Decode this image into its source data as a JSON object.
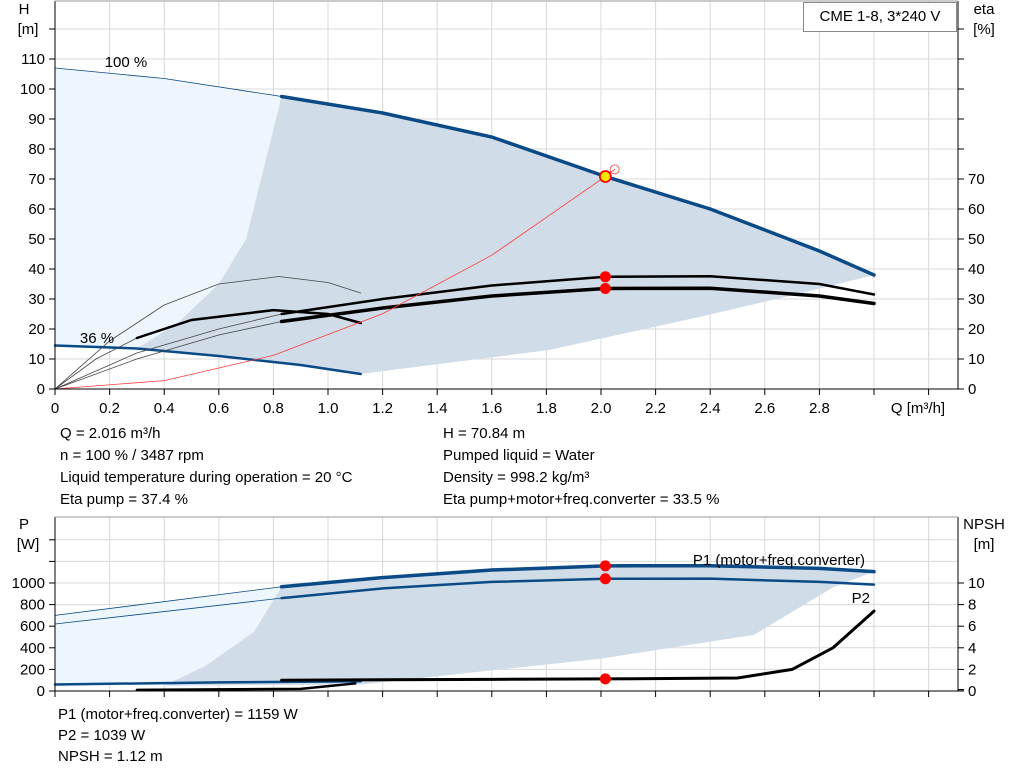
{
  "legend_box": "CME 1-8, 3*240 V",
  "colors": {
    "curve_blue": "#0a4a86",
    "light_area": "#edf5fd",
    "dark_area": "#d0dce8",
    "duty_point": "#ff0000",
    "system_curve": "#ff3b3b",
    "grid": "#d8d8d8"
  },
  "chart_data": [
    {
      "type": "line",
      "xlabel": "Q [m³/h]",
      "ylabel": "H\n[m]",
      "ylabel_right": "eta\n[%]",
      "xlim": [
        0,
        3.3
      ],
      "ylim": [
        0,
        129
      ],
      "x_ticks": [
        "0",
        "0.2",
        "0.4",
        "0.6",
        "0.8",
        "1.0",
        "1.2",
        "1.4",
        "1.6",
        "1.8",
        "2.0",
        "2.2",
        "2.4",
        "2.6",
        "2.8"
      ],
      "y_ticks": [
        "0",
        "10",
        "20",
        "30",
        "40",
        "50",
        "60",
        "70",
        "80",
        "90",
        "100",
        "110"
      ],
      "y_right_ticks": [
        "0",
        "10",
        "20",
        "30",
        "40",
        "50",
        "60",
        "70"
      ],
      "grid": true,
      "annotations": [
        "100 %",
        "36 %"
      ],
      "series": [
        {
          "key": "h100_thin",
          "points": [
            [
              0,
              107
            ],
            [
              0.4,
              103.5
            ],
            [
              0.83,
              97.5
            ]
          ]
        },
        {
          "key": "h100",
          "points": [
            [
              0.83,
              97.5
            ],
            [
              1.2,
              92
            ],
            [
              1.6,
              84
            ],
            [
              2.016,
              70.84
            ],
            [
              2.4,
              60
            ],
            [
              2.8,
              46
            ],
            [
              3.0,
              38
            ]
          ]
        },
        {
          "key": "h36",
          "points": [
            [
              0,
              14.5
            ],
            [
              0.3,
              13.5
            ],
            [
              0.6,
              11
            ],
            [
              0.9,
              8
            ],
            [
              1.12,
              5
            ]
          ]
        },
        {
          "key": "eta_pump_thin",
          "points": [
            [
              0,
              0
            ],
            [
              0.3,
              12
            ],
            [
              0.6,
              20
            ],
            [
              0.83,
              25
            ]
          ]
        },
        {
          "key": "eta_pump",
          "points": [
            [
              0.83,
              25
            ],
            [
              1.2,
              30
            ],
            [
              1.6,
              34.5
            ],
            [
              2.016,
              37.4
            ],
            [
              2.4,
              37.6
            ],
            [
              2.8,
              35
            ],
            [
              3.0,
              31.5
            ]
          ]
        },
        {
          "key": "eta_total_thin",
          "points": [
            [
              0,
              0
            ],
            [
              0.3,
              10
            ],
            [
              0.6,
              18
            ],
            [
              0.83,
              22.5
            ]
          ]
        },
        {
          "key": "eta_total",
          "points": [
            [
              0.83,
              22.5
            ],
            [
              1.2,
              27
            ],
            [
              1.6,
              31
            ],
            [
              2.016,
              33.5
            ],
            [
              2.4,
              33.6
            ],
            [
              2.8,
              31
            ],
            [
              3.0,
              28.5
            ]
          ]
        },
        {
          "key": "eta_pump_36",
          "points": [
            [
              0,
              0
            ],
            [
              0.2,
              16
            ],
            [
              0.4,
              28
            ],
            [
              0.6,
              35
            ],
            [
              0.82,
              37.5
            ],
            [
              1.0,
              35.5
            ],
            [
              1.12,
              32
            ]
          ]
        },
        {
          "key": "eta_total_36_thin",
          "points": [
            [
              0,
              0
            ],
            [
              0.15,
              10
            ],
            [
              0.3,
              17
            ]
          ]
        },
        {
          "key": "eta_total_36",
          "points": [
            [
              0.3,
              17
            ],
            [
              0.5,
              23
            ],
            [
              0.8,
              26.3
            ],
            [
              1.0,
              25
            ],
            [
              1.12,
              22
            ]
          ]
        },
        {
          "key": "system_curve",
          "points": [
            [
              0,
              0
            ],
            [
              0.4,
              2.8
            ],
            [
              0.8,
              11.2
            ],
            [
              1.2,
              25.1
            ],
            [
              1.6,
              44.6
            ],
            [
              2.016,
              70.84
            ],
            [
              2.05,
              73.2
            ]
          ]
        }
      ],
      "light_area": [
        [
          0,
          107
        ],
        [
          0.4,
          103.5
        ],
        [
          0.83,
          97.5
        ],
        [
          0.83,
          9
        ],
        [
          1.12,
          5
        ],
        [
          0.6,
          11
        ],
        [
          0.3,
          13.5
        ],
        [
          0,
          14.5
        ]
      ],
      "dark_area": [
        [
          0.3,
          13.5
        ],
        [
          0.45,
          22
        ],
        [
          0.6,
          35
        ],
        [
          0.7,
          50
        ],
        [
          0.83,
          97.5
        ],
        [
          1.2,
          92
        ],
        [
          1.6,
          84
        ],
        [
          2.016,
          70.84
        ],
        [
          2.4,
          60
        ],
        [
          2.8,
          46
        ],
        [
          3.0,
          38
        ],
        [
          2.69,
          31
        ],
        [
          2.36,
          24
        ],
        [
          1.81,
          13
        ],
        [
          1.12,
          5
        ],
        [
          0.6,
          11
        ]
      ],
      "duty_points": [
        [
          2.016,
          70.84
        ],
        [
          2.016,
          37.4
        ],
        [
          2.016,
          33.5
        ]
      ]
    },
    {
      "type": "line",
      "ylabel": "P\n[W]",
      "ylabel_right": "NPSH\n[m]",
      "xlim": [
        0,
        3.3
      ],
      "ylim": [
        0,
        1611
      ],
      "y_ticks": [
        "0",
        "200",
        "400",
        "600",
        "800",
        "1000"
      ],
      "y_right_ticks": [
        "0",
        "2",
        "4",
        "6",
        "8",
        "10"
      ],
      "grid": true,
      "series": [
        {
          "key": "p1_thin",
          "points": [
            [
              0,
              700
            ],
            [
              0.83,
              965
            ]
          ]
        },
        {
          "key": "p1",
          "name": "P1 (motor+freq.converter)",
          "points": [
            [
              0.83,
              965
            ],
            [
              1.2,
              1050
            ],
            [
              1.6,
              1120
            ],
            [
              2.016,
              1159
            ],
            [
              2.4,
              1160
            ],
            [
              2.8,
              1135
            ],
            [
              3.0,
              1105
            ]
          ]
        },
        {
          "key": "p2_thin",
          "points": [
            [
              0,
              620
            ],
            [
              0.83,
              860
            ]
          ]
        },
        {
          "key": "p2",
          "name": "P2",
          "points": [
            [
              0.83,
              860
            ],
            [
              1.2,
              950
            ],
            [
              1.6,
              1010
            ],
            [
              2.016,
              1039
            ],
            [
              2.4,
              1040
            ],
            [
              2.8,
              1010
            ],
            [
              3.0,
              985
            ]
          ]
        },
        {
          "key": "p_36",
          "points": [
            [
              0,
              60
            ],
            [
              0.6,
              80
            ],
            [
              1.12,
              90
            ]
          ]
        },
        {
          "key": "npsh_36",
          "points": [
            [
              0.3,
              0.1
            ],
            [
              0.9,
              0.2
            ],
            [
              1.1,
              0.7
            ]
          ]
        },
        {
          "key": "npsh",
          "points": [
            [
              0.83,
              1.0
            ],
            [
              1.6,
              1.08
            ],
            [
              2.016,
              1.12
            ],
            [
              2.5,
              1.2
            ],
            [
              2.7,
              2
            ],
            [
              2.85,
              4
            ],
            [
              3.0,
              7.4
            ]
          ]
        }
      ],
      "light_area": [
        [
          0,
          700
        ],
        [
          0.83,
          965
        ],
        [
          0.83,
          100
        ],
        [
          0,
          50
        ]
      ],
      "dark_area": [
        [
          0.4,
          50
        ],
        [
          0.55,
          230
        ],
        [
          0.73,
          550
        ],
        [
          0.83,
          965
        ],
        [
          1.2,
          1050
        ],
        [
          1.6,
          1120
        ],
        [
          2.016,
          1159
        ],
        [
          2.4,
          1160
        ],
        [
          2.8,
          1135
        ],
        [
          3.0,
          1105
        ],
        [
          2.85,
          960
        ],
        [
          2.56,
          520
        ],
        [
          2.0,
          300
        ],
        [
          1.12,
          60
        ]
      ],
      "duty_points": [
        [
          2.016,
          1159
        ],
        [
          2.016,
          1039
        ]
      ],
      "npsh_duty_point": [
        2.016,
        1.12
      ]
    }
  ],
  "results_top": {
    "left": [
      "Q = 2.016 m³/h",
      "n = 100 % / 3487 rpm",
      "Liquid temperature during operation = 20 °C",
      "Eta pump = 37.4 %"
    ],
    "right": [
      "H = 70.84 m",
      "Pumped liquid = Water",
      "Density = 998.2 kg/m³",
      "Eta pump+motor+freq.converter = 33.5 %"
    ]
  },
  "results_bottom": [
    "P1 (motor+freq.converter) = 1159 W",
    "P2 = 1039 W",
    "NPSH = 1.12 m"
  ]
}
